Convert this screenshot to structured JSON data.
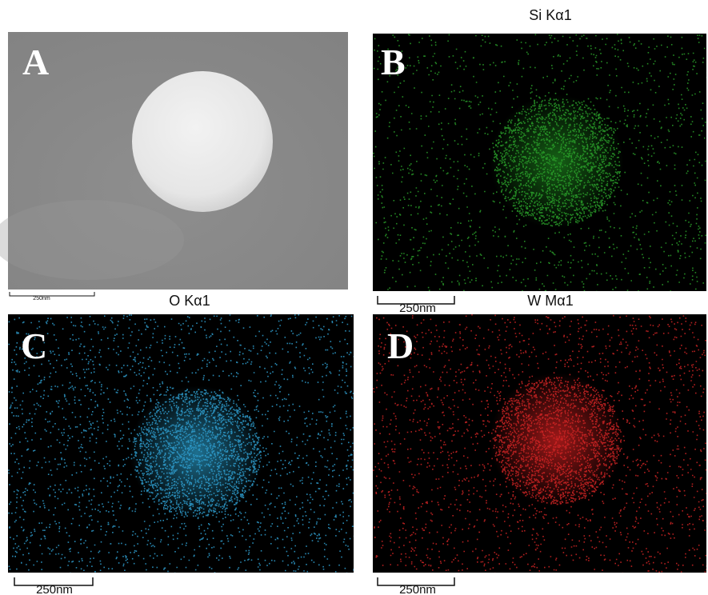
{
  "panels": [
    {
      "label": "A",
      "scale": "250nm"
    },
    {
      "label": "B",
      "title": "Si Kα1",
      "scale": "250nm"
    },
    {
      "label": "C",
      "title": "O Kα1",
      "scale": "250nm"
    },
    {
      "label": "D",
      "title": "W Mα1",
      "scale": "250nm"
    }
  ]
}
